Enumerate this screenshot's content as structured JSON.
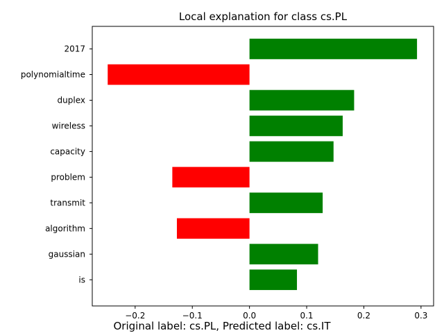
{
  "chart_data": {
    "type": "bar",
    "orientation": "horizontal",
    "title": "Local explanation for class cs.PL",
    "categories": [
      "2017",
      "polynomialtime",
      "duplex",
      "wireless",
      "capacity",
      "problem",
      "transmit",
      "algorithm",
      "gaussian",
      "is"
    ],
    "values": [
      0.293,
      -0.248,
      0.183,
      0.163,
      0.147,
      -0.135,
      0.128,
      -0.127,
      0.12,
      0.083
    ],
    "xlim": [
      -0.275,
      0.322
    ],
    "xticks": [
      -0.2,
      -0.1,
      0.0,
      0.1,
      0.2,
      0.3
    ],
    "xtick_labels": [
      "−0.2",
      "−0.1",
      "0.0",
      "0.1",
      "0.2",
      "0.3"
    ],
    "xlabel": "",
    "ylabel": "",
    "grid": false,
    "colors": {
      "positive": "#008000",
      "negative": "#ff0000"
    }
  },
  "caption": "Original label: cs.PL, Predicted label: cs.IT"
}
